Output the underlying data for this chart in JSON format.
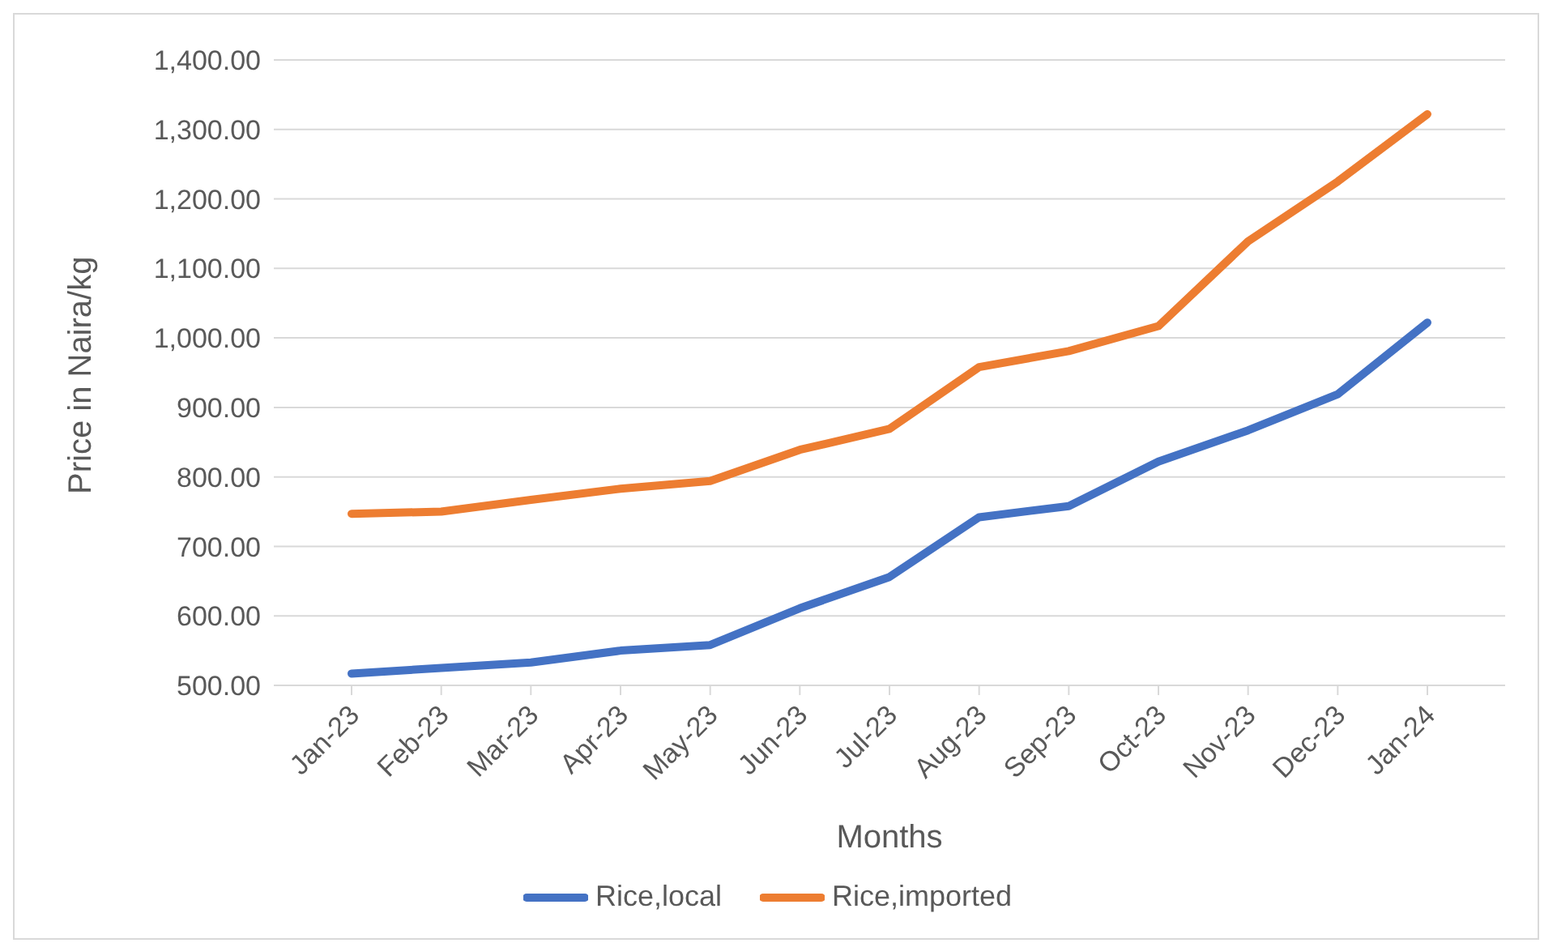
{
  "chart_data": {
    "type": "line",
    "xlabel": "Months",
    "ylabel": "Price in Naira/kg",
    "categories": [
      "Jan-23",
      "Feb-23",
      "Mar-23",
      "Apr-23",
      "May-23",
      "Jun-23",
      "Jul-23",
      "Aug-23",
      "Sep-23",
      "Oct-23",
      "Nov-23",
      "Dec-23",
      "Jan-24"
    ],
    "series": [
      {
        "name": "Rice,local",
        "color": "#4472c4",
        "values": [
          517,
          525,
          533,
          550,
          558,
          611,
          656,
          742,
          758,
          822,
          867,
          919,
          1022
        ]
      },
      {
        "name": "Rice,imported",
        "color": "#ed7d31",
        "values": [
          747,
          750,
          767,
          783,
          794,
          839,
          869,
          958,
          981,
          1017,
          1139,
          1225,
          1322
        ]
      }
    ],
    "ylim": [
      500,
      1400
    ],
    "yticks": [
      {
        "value": 500,
        "label": "500.00"
      },
      {
        "value": 600,
        "label": "600.00"
      },
      {
        "value": 700,
        "label": "700.00"
      },
      {
        "value": 800,
        "label": "800.00"
      },
      {
        "value": 900,
        "label": "900.00"
      },
      {
        "value": 1000,
        "label": "1,000.00"
      },
      {
        "value": 1100,
        "label": "1,100.00"
      },
      {
        "value": 1200,
        "label": "1,200.00"
      },
      {
        "value": 1300,
        "label": "1,300.00"
      },
      {
        "value": 1400,
        "label": "1,400.00"
      }
    ],
    "grid": "y",
    "legend": "bottom",
    "marker": "none",
    "line_style": "solid"
  }
}
